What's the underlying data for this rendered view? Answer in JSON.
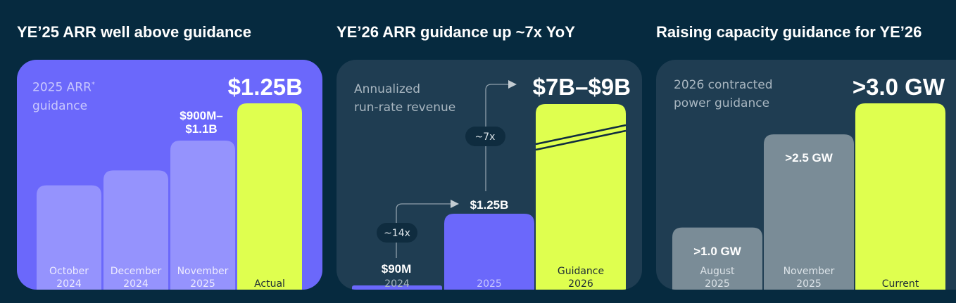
{
  "colors": {
    "background": "#062a3f",
    "panel_purple": "#6b68fb",
    "panel_dark": "#1f3d52",
    "accent_lime": "#dfff4f",
    "bar_light_purple": "#9593fd",
    "bar_purple": "#6b68fb",
    "bar_gray": "#7a8c97",
    "badge": "#0f2c3f"
  },
  "panels": [
    {
      "title": "YE’25 ARR well above guidance",
      "label_line1": "2025 ARR",
      "label_sup": "*",
      "label_line2": "guidance",
      "big_value": "$1.25B"
    },
    {
      "title": "YE’26 ARR guidance up ~7x YoY",
      "label_line1": "Annualized",
      "label_line2": "run-rate revenue",
      "big_value": "$7B–$9B"
    },
    {
      "title": "Raising capacity guidance for YE’26",
      "label_line1": "2026 contracted",
      "label_line2": "power guidance",
      "big_value": ">3.0 GW"
    }
  ],
  "chart_data": [
    {
      "type": "bar",
      "title": "YE’25 ARR well above guidance",
      "ylabel": "2025 ARR guidance",
      "categories": [
        [
          "October",
          "2024"
        ],
        [
          "December",
          "2024"
        ],
        [
          "November",
          "2025"
        ],
        [
          "Actual"
        ]
      ],
      "values": [
        0.7,
        0.8,
        1.0,
        1.25
      ],
      "value_labels": [
        "",
        "",
        "$900M–$1.1B",
        "$1.25B"
      ],
      "unit": "$B",
      "ylim": [
        0,
        1.25
      ],
      "legend": "none"
    },
    {
      "type": "bar",
      "title": "YE’26 ARR guidance up ~7x YoY",
      "ylabel": "Annualized run-rate revenue",
      "categories": [
        [
          "2024"
        ],
        [
          "2025"
        ],
        [
          "Guidance",
          "2026"
        ]
      ],
      "values": [
        0.09,
        1.25,
        9
      ],
      "value_labels": [
        "$90M",
        "$1.25B",
        "$7B–$9B"
      ],
      "unit": "$B",
      "axis_break": true,
      "annotations": [
        "~14x",
        "~7x"
      ],
      "legend": "none"
    },
    {
      "type": "bar",
      "title": "Raising capacity guidance for YE’26",
      "ylabel": "2026 contracted power guidance",
      "categories": [
        [
          "August",
          "2025"
        ],
        [
          "November",
          "2025"
        ],
        [
          "Current"
        ]
      ],
      "values": [
        1.0,
        2.5,
        3.0
      ],
      "value_labels": [
        ">1.0 GW",
        ">2.5 GW",
        ">3.0 GW"
      ],
      "unit": "GW",
      "ylim": [
        0,
        3.0
      ],
      "legend": "none"
    }
  ]
}
